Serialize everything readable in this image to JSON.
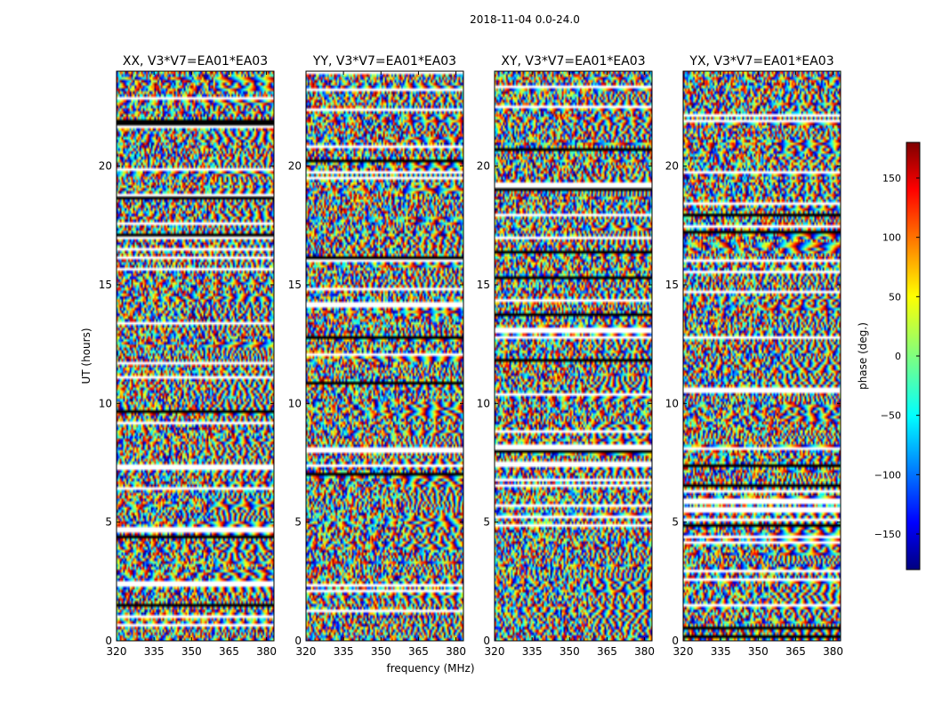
{
  "figure": {
    "suptitle": "2018-11-04 0.0-24.0",
    "xlabel": "frequency (MHz)",
    "ylabel": "UT (hours)"
  },
  "chart_data": {
    "type": "heatmap",
    "suptitle": "2018-11-04 0.0-24.0",
    "xlabel": "frequency (MHz)",
    "ylabel": "UT (hours)",
    "xlim": [
      320,
      383
    ],
    "ylim": [
      0,
      24
    ],
    "xticks": [
      320,
      335,
      350,
      365,
      380
    ],
    "yticks": [
      0,
      5,
      10,
      15,
      20
    ],
    "colormap": "jet",
    "panels": [
      {
        "title": "XX, V3*V7=EA01*EA03",
        "pol": "XX"
      },
      {
        "title": "YY, V3*V7=EA01*EA03",
        "pol": "YY"
      },
      {
        "title": "XY, V3*V7=EA01*EA03",
        "pol": "XY"
      },
      {
        "title": "YX, V3*V7=EA01*EA03",
        "pol": "YX"
      }
    ],
    "colorbar": {
      "label": "phase (deg.)",
      "range": [
        -180,
        180
      ],
      "ticks": [
        -150,
        -100,
        -50,
        0,
        50,
        100,
        150
      ]
    }
  }
}
